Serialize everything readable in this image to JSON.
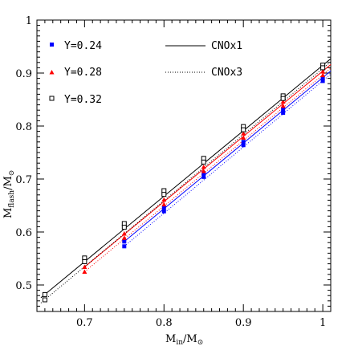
{
  "chart_data": {
    "type": "scatter",
    "xlabel": "M",
    "xlabel_sub": "in",
    "xlabel_tail": "/M",
    "xlabel_sun": "⊙",
    "ylabel": "M",
    "ylabel_sub": "flash",
    "ylabel_tail": "/M",
    "ylabel_sun": "⊙",
    "xlim": [
      0.64,
      1.01
    ],
    "ylim": [
      0.45,
      1.0
    ],
    "x_ticks": [
      0.7,
      0.8,
      0.9,
      1
    ],
    "x_tick_labels": [
      "0.7",
      "0.8",
      "0.9",
      "1"
    ],
    "y_ticks": [
      0.5,
      0.6,
      0.7,
      0.8,
      0.9,
      1
    ],
    "y_tick_labels": [
      "0.5",
      "0.6",
      "0.7",
      "0.8",
      "0.9",
      "1"
    ],
    "x_minor_step": 0.01,
    "y_minor_step": 0.01,
    "legend_placement": "top-left",
    "series": [
      {
        "name": "Y=0.24",
        "color": "#0000ff",
        "marker": "filled-square",
        "points": {
          "cno1": [
            [
              0.75,
              0.582
            ],
            [
              0.8,
              0.646
            ],
            [
              0.85,
              0.711
            ],
            [
              0.9,
              0.77
            ],
            [
              0.95,
              0.831
            ],
            [
              1.0,
              0.89
            ]
          ],
          "cno3": [
            [
              0.75,
              0.573
            ],
            [
              0.8,
              0.639
            ],
            [
              0.85,
              0.704
            ],
            [
              0.9,
              0.764
            ],
            [
              0.95,
              0.825
            ],
            [
              1.0,
              0.885
            ]
          ]
        },
        "fit": {
          "cno1": [
            [
              0.75,
              0.582
            ],
            [
              1.01,
              0.904
            ]
          ],
          "cno3": [
            [
              0.75,
              0.573
            ],
            [
              1.01,
              0.898
            ]
          ]
        }
      },
      {
        "name": "Y=0.28",
        "color": "#ff0000",
        "marker": "filled-triangle",
        "points": {
          "cno1": [
            [
              0.7,
              0.534
            ],
            [
              0.75,
              0.597
            ],
            [
              0.8,
              0.661
            ],
            [
              0.85,
              0.723
            ],
            [
              0.9,
              0.786
            ],
            [
              0.95,
              0.846
            ],
            [
              1.0,
              0.903
            ]
          ],
          "cno3": [
            [
              0.7,
              0.525
            ],
            [
              0.75,
              0.589
            ],
            [
              0.8,
              0.652
            ],
            [
              0.85,
              0.715
            ],
            [
              0.9,
              0.778
            ],
            [
              0.95,
              0.838
            ],
            [
              1.0,
              0.896
            ]
          ]
        },
        "fit": {
          "cno1": [
            [
              0.7,
              0.534
            ],
            [
              1.01,
              0.916
            ]
          ],
          "cno3": [
            [
              0.7,
              0.525
            ],
            [
              1.01,
              0.909
            ]
          ]
        }
      },
      {
        "name": "Y=0.32",
        "color": "#000000",
        "marker": "open-square",
        "points": {
          "cno1": [
            [
              0.65,
              0.482
            ],
            [
              0.7,
              0.551
            ],
            [
              0.75,
              0.616
            ],
            [
              0.8,
              0.678
            ],
            [
              0.85,
              0.739
            ],
            [
              0.9,
              0.799
            ],
            [
              0.95,
              0.857
            ],
            [
              1.0,
              0.915
            ]
          ],
          "cno3": [
            [
              0.65,
              0.472
            ],
            [
              0.7,
              0.544
            ],
            [
              0.75,
              0.609
            ],
            [
              0.8,
              0.671
            ],
            [
              0.85,
              0.732
            ],
            [
              0.9,
              0.793
            ],
            [
              0.95,
              0.852
            ],
            [
              1.0,
              0.91
            ]
          ]
        },
        "fit": {
          "cno1": [
            [
              0.645,
              0.476
            ],
            [
              1.01,
              0.927
            ]
          ],
          "cno3": [
            [
              0.645,
              0.466
            ],
            [
              1.01,
              0.921
            ]
          ]
        }
      }
    ],
    "line_styles": [
      {
        "name": "CNOx1",
        "key": "cno1",
        "dash": "solid"
      },
      {
        "name": "CNOx3",
        "key": "cno3",
        "dash": "dotted"
      }
    ]
  }
}
